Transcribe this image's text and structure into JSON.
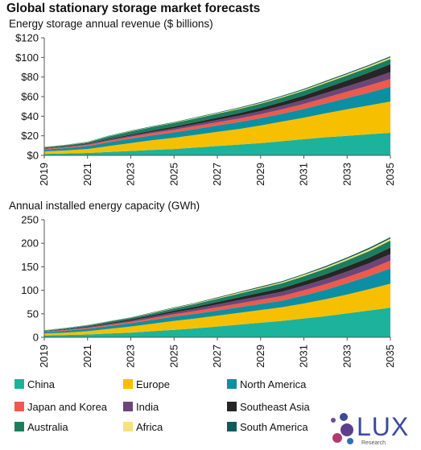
{
  "title": "Global stationary storage market forecasts",
  "legend": [
    {
      "label": "China",
      "color": "#1bb39b"
    },
    {
      "label": "Europe",
      "color": "#f6c000"
    },
    {
      "label": "North America",
      "color": "#0d8fa3"
    },
    {
      "label": "Japan and Korea",
      "color": "#ee5a4b"
    },
    {
      "label": "India",
      "color": "#6c4678"
    },
    {
      "label": "Southeast Asia",
      "color": "#262626"
    },
    {
      "label": "Australia",
      "color": "#1a7e5e"
    },
    {
      "label": "Africa",
      "color": "#f6e27d"
    },
    {
      "label": "South America",
      "color": "#0f5c5e"
    }
  ],
  "logo": {
    "word": "LUX",
    "sub": "Research"
  },
  "chart_data": [
    {
      "type": "area",
      "stacked": true,
      "title": "Energy storage annual revenue ($ billions)",
      "x": [
        2019,
        2020,
        2021,
        2022,
        2023,
        2024,
        2025,
        2026,
        2027,
        2028,
        2029,
        2030,
        2031,
        2032,
        2033,
        2034,
        2035
      ],
      "xticks": [
        "2019",
        "2021",
        "2023",
        "2025",
        "2027",
        "2029",
        "2031",
        "2033",
        "2035"
      ],
      "yticks": [
        "$0",
        "$20",
        "$40",
        "$60",
        "$80",
        "$100",
        "$120"
      ],
      "ylim": [
        0,
        120
      ],
      "grid": false,
      "series": [
        {
          "name": "China",
          "values": [
            1.5,
            2.0,
            2.5,
            3.5,
            4.5,
            5.5,
            6.5,
            8,
            9.5,
            11,
            12.5,
            14.5,
            16.5,
            18.5,
            20,
            21.5,
            23
          ]
        },
        {
          "name": "Europe",
          "values": [
            2.5,
            3.0,
            4.0,
            6.0,
            8.0,
            10.0,
            11.5,
            13.0,
            14.5,
            16.0,
            18.0,
            20.0,
            22.0,
            24.5,
            27.0,
            29.5,
            32.0
          ]
        },
        {
          "name": "North America",
          "values": [
            2.0,
            2.5,
            3.0,
            4.0,
            4.5,
            5.0,
            5.5,
            6.0,
            6.5,
            7.0,
            7.5,
            8.0,
            9.0,
            10.0,
            11.5,
            13.0,
            15.0
          ]
        },
        {
          "name": "Japan and Korea",
          "values": [
            0.8,
            1.0,
            1.3,
            1.6,
            2.0,
            2.3,
            2.6,
            3.0,
            3.3,
            3.6,
            4.0,
            4.5,
            5.0,
            5.8,
            6.5,
            7.3,
            8.0
          ]
        },
        {
          "name": "India",
          "values": [
            0.4,
            0.5,
            0.7,
            0.9,
            1.1,
            1.4,
            1.7,
            2.0,
            2.4,
            2.8,
            3.2,
            3.7,
            4.2,
            4.8,
            5.5,
            6.2,
            7.0
          ]
        },
        {
          "name": "Southeast Asia",
          "values": [
            0.4,
            0.5,
            0.7,
            0.9,
            1.1,
            1.3,
            1.6,
            1.9,
            2.3,
            2.7,
            3.2,
            3.8,
            4.4,
            5.2,
            6.0,
            7.0,
            8.0
          ]
        },
        {
          "name": "Australia",
          "values": [
            0.6,
            0.8,
            1.2,
            2.5,
            3.2,
            3.4,
            3.6,
            3.8,
            4.0,
            4.2,
            4.4,
            4.6,
            4.8,
            5.0,
            5.2,
            5.3,
            5.5
          ]
        },
        {
          "name": "Africa",
          "values": [
            0.2,
            0.2,
            0.3,
            0.3,
            0.4,
            0.4,
            0.5,
            0.6,
            0.7,
            0.8,
            0.9,
            1.0,
            1.1,
            1.2,
            1.3,
            1.4,
            1.5
          ]
        },
        {
          "name": "South America",
          "values": [
            0.2,
            0.3,
            0.3,
            0.4,
            0.4,
            0.5,
            0.5,
            0.6,
            0.6,
            0.7,
            0.7,
            0.8,
            0.9,
            1.0,
            1.0,
            1.1,
            1.2
          ]
        }
      ]
    },
    {
      "type": "area",
      "stacked": true,
      "title": "Annual installed energy capacity (GWh)",
      "x": [
        2019,
        2020,
        2021,
        2022,
        2023,
        2024,
        2025,
        2026,
        2027,
        2028,
        2029,
        2030,
        2031,
        2032,
        2033,
        2034,
        2035
      ],
      "xticks": [
        "2019",
        "2021",
        "2023",
        "2025",
        "2027",
        "2029",
        "2031",
        "2033",
        "2035"
      ],
      "yticks": [
        "0",
        "50",
        "100",
        "150",
        "200",
        "250"
      ],
      "ylim": [
        0,
        250
      ],
      "grid": false,
      "series": [
        {
          "name": "China",
          "values": [
            4,
            5,
            6,
            8,
            10,
            13,
            16,
            19,
            23,
            27,
            31,
            35,
            40,
            45,
            51,
            57,
            63
          ]
        },
        {
          "name": "Europe",
          "values": [
            4,
            5,
            7,
            10,
            13,
            16,
            19,
            21,
            23,
            25,
            27,
            29,
            32,
            36,
            40,
            45,
            51
          ]
        },
        {
          "name": "North America",
          "values": [
            3,
            4,
            5,
            6,
            7,
            8,
            9,
            10,
            11,
            12,
            13,
            14,
            17,
            20,
            24,
            28,
            33
          ]
        },
        {
          "name": "Japan and Korea",
          "values": [
            1,
            1.5,
            2,
            2.5,
            3,
            4,
            5,
            6,
            7,
            8,
            9,
            10,
            11,
            12,
            13,
            14,
            16
          ]
        },
        {
          "name": "India",
          "values": [
            0.5,
            1,
            1.5,
            2,
            2.5,
            3,
            4,
            5,
            6,
            7,
            8,
            9,
            10,
            11,
            12,
            13,
            14
          ]
        },
        {
          "name": "Southeast Asia",
          "values": [
            0.5,
            1,
            1.5,
            2,
            2.5,
            3,
            3.5,
            4,
            5,
            6,
            7,
            8,
            9,
            10,
            11,
            12,
            14
          ]
        },
        {
          "name": "Australia",
          "values": [
            1,
            1.5,
            2,
            3,
            3.5,
            4,
            5,
            6,
            7,
            8,
            9,
            10,
            11,
            12,
            13,
            14,
            15
          ]
        },
        {
          "name": "Africa",
          "values": [
            0.5,
            0.5,
            0.5,
            0.5,
            0.5,
            1,
            1,
            1.5,
            1.5,
            2,
            2,
            2.5,
            3,
            3,
            3.5,
            4,
            4
          ]
        },
        {
          "name": "South America",
          "values": [
            0.5,
            0.5,
            0.5,
            0.5,
            0.5,
            1,
            1,
            1,
            1.5,
            1.5,
            2,
            2,
            2,
            2.5,
            2.5,
            3,
            3
          ]
        }
      ]
    }
  ]
}
